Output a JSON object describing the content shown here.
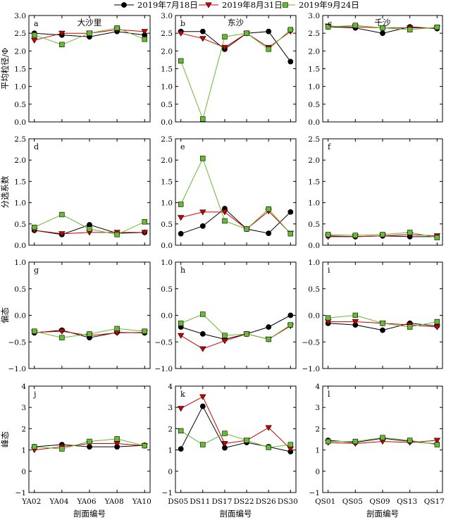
{
  "legend": [
    {
      "label": "2019年7月18日",
      "color": "#000000",
      "marker": "circle"
    },
    {
      "label": "2019年8月31日",
      "color": "#cc0000",
      "marker": "triangle-down"
    },
    {
      "label": "2019年9月24日",
      "color": "#66bb33",
      "marker": "square"
    }
  ],
  "regions": [
    "大沙里",
    "东沙",
    "千沙"
  ],
  "xlabel": "剖面编号",
  "chart_data": [
    {
      "type": "line",
      "letter": "a",
      "region": "大沙里",
      "ylabel": "平均粒径/Φ",
      "ylim": [
        0,
        3
      ],
      "yticks": [
        "0.0",
        "0.5",
        "1.0",
        "1.5",
        "2.0",
        "2.5",
        "3.0"
      ],
      "categories": [
        "YA02",
        "YA04",
        "YA06",
        "YA08",
        "YA10"
      ],
      "series": [
        {
          "name": "2019年7月18日",
          "values": [
            2.5,
            2.45,
            2.4,
            2.55,
            2.45
          ]
        },
        {
          "name": "2019年8月31日",
          "values": [
            2.3,
            2.5,
            2.5,
            2.6,
            2.55
          ]
        },
        {
          "name": "2019年9月24日",
          "values": [
            2.45,
            2.18,
            2.5,
            2.65,
            2.33
          ]
        }
      ]
    },
    {
      "type": "line",
      "letter": "b",
      "region": "东沙",
      "ylabel": "",
      "ylim": [
        0,
        3
      ],
      "yticks": [
        "0.0",
        "0.5",
        "1.0",
        "1.5",
        "2.0",
        "2.5",
        "3.0"
      ],
      "categories": [
        "DS05",
        "DS11",
        "DS17",
        "DS22",
        "DS26",
        "DS30"
      ],
      "series": [
        {
          "name": "2019年7月18日",
          "values": [
            2.55,
            2.55,
            2.05,
            2.5,
            2.55,
            1.7
          ]
        },
        {
          "name": "2019年8月31日",
          "values": [
            2.5,
            2.35,
            2.1,
            2.5,
            2.1,
            2.55
          ]
        },
        {
          "name": "2019年9月24日",
          "values": [
            1.72,
            0.08,
            2.4,
            2.5,
            2.05,
            2.6
          ]
        }
      ]
    },
    {
      "type": "line",
      "letter": "c",
      "region": "千沙",
      "ylabel": "",
      "ylim": [
        0,
        3
      ],
      "yticks": [
        "0.0",
        "0.5",
        "1.0",
        "1.5",
        "2.0",
        "2.5",
        "3.0"
      ],
      "categories": [
        "QS01",
        "QS05",
        "QS09",
        "QS13",
        "QS17"
      ],
      "series": [
        {
          "name": "2019年7月18日",
          "values": [
            2.68,
            2.65,
            2.5,
            2.68,
            2.63
          ]
        },
        {
          "name": "2019年8月31日",
          "values": [
            2.7,
            2.68,
            2.65,
            2.65,
            2.65
          ]
        },
        {
          "name": "2019年9月24日",
          "values": [
            2.68,
            2.72,
            2.65,
            2.6,
            2.67
          ]
        }
      ]
    },
    {
      "type": "line",
      "letter": "d",
      "ylabel": "分选系数",
      "ylim": [
        0,
        2.5
      ],
      "yticks": [
        "0.0",
        "0.5",
        "1.0",
        "1.5",
        "2.0",
        "2.5"
      ],
      "categories": [
        "YA02",
        "YA04",
        "YA06",
        "YA08",
        "YA10"
      ],
      "series": [
        {
          "name": "2019年7月18日",
          "values": [
            0.35,
            0.25,
            0.48,
            0.28,
            0.3
          ]
        },
        {
          "name": "2019年8月31日",
          "values": [
            0.35,
            0.27,
            0.3,
            0.3,
            0.3
          ]
        },
        {
          "name": "2019年9月24日",
          "values": [
            0.42,
            0.72,
            0.38,
            0.25,
            0.55
          ]
        }
      ]
    },
    {
      "type": "line",
      "letter": "e",
      "ylabel": "",
      "ylim": [
        0,
        2.5
      ],
      "yticks": [
        "0.0",
        "0.5",
        "1.0",
        "1.5",
        "2.0",
        "2.5"
      ],
      "categories": [
        "DS05",
        "DS11",
        "DS17",
        "DS22",
        "DS26",
        "DS30"
      ],
      "series": [
        {
          "name": "2019年7月18日",
          "values": [
            0.27,
            0.45,
            0.86,
            0.38,
            0.28,
            0.78
          ]
        },
        {
          "name": "2019年8月31日",
          "values": [
            0.65,
            0.78,
            0.78,
            0.38,
            0.8,
            0.28
          ]
        },
        {
          "name": "2019年9月24日",
          "values": [
            0.96,
            2.04,
            0.57,
            0.38,
            0.85,
            0.27
          ]
        }
      ]
    },
    {
      "type": "line",
      "letter": "f",
      "ylabel": "",
      "ylim": [
        0,
        2.5
      ],
      "yticks": [
        "0.0",
        "0.5",
        "1.0",
        "1.5",
        "2.0",
        "2.5"
      ],
      "categories": [
        "QS01",
        "QS05",
        "QS09",
        "QS13",
        "QS17"
      ],
      "series": [
        {
          "name": "2019年7月18日",
          "values": [
            0.22,
            0.2,
            0.22,
            0.2,
            0.2
          ]
        },
        {
          "name": "2019年8月31日",
          "values": [
            0.2,
            0.2,
            0.22,
            0.25,
            0.22
          ]
        },
        {
          "name": "2019年9月24日",
          "values": [
            0.25,
            0.23,
            0.25,
            0.3,
            0.18
          ]
        }
      ]
    },
    {
      "type": "line",
      "letter": "g",
      "ylabel": "偏态",
      "ylim": [
        -1,
        1
      ],
      "yticks": [
        "−1.0",
        "−0.5",
        "0.0",
        "0.5",
        "1.0"
      ],
      "categories": [
        "YA02",
        "YA04",
        "YA06",
        "YA08",
        "YA10"
      ],
      "series": [
        {
          "name": "2019年7月18日",
          "values": [
            -0.33,
            -0.28,
            -0.42,
            -0.32,
            -0.33
          ]
        },
        {
          "name": "2019年8月31日",
          "values": [
            -0.32,
            -0.3,
            -0.38,
            -0.33,
            -0.32
          ]
        },
        {
          "name": "2019年9月24日",
          "values": [
            -0.3,
            -0.42,
            -0.35,
            -0.25,
            -0.3
          ]
        }
      ]
    },
    {
      "type": "line",
      "letter": "h",
      "ylabel": "",
      "ylim": [
        -1,
        1
      ],
      "yticks": [
        "−1.0",
        "−0.5",
        "0.0",
        "0.5",
        "1.0"
      ],
      "categories": [
        "DS05",
        "DS11",
        "DS17",
        "DS22",
        "DS26",
        "DS30"
      ],
      "series": [
        {
          "name": "2019年7月18日",
          "values": [
            -0.22,
            -0.35,
            -0.45,
            -0.35,
            -0.22,
            0.0
          ]
        },
        {
          "name": "2019年8月31日",
          "values": [
            -0.38,
            -0.63,
            -0.48,
            -0.35,
            -0.45,
            -0.2
          ]
        },
        {
          "name": "2019年9月24日",
          "values": [
            -0.15,
            0.02,
            -0.38,
            -0.35,
            -0.45,
            -0.18
          ]
        }
      ]
    },
    {
      "type": "line",
      "letter": "i",
      "ylabel": "",
      "ylim": [
        -1,
        1
      ],
      "yticks": [
        "−1.0",
        "−0.5",
        "0.0",
        "0.5",
        "1.0"
      ],
      "categories": [
        "QS01",
        "QS05",
        "QS09",
        "QS13",
        "QS17"
      ],
      "series": [
        {
          "name": "2019年7月18日",
          "values": [
            -0.15,
            -0.18,
            -0.28,
            -0.15,
            -0.2
          ]
        },
        {
          "name": "2019年8月31日",
          "values": [
            -0.12,
            -0.12,
            -0.15,
            -0.18,
            -0.22
          ]
        },
        {
          "name": "2019年9月24日",
          "values": [
            -0.05,
            0.0,
            -0.15,
            -0.22,
            -0.12
          ]
        }
      ]
    },
    {
      "type": "line",
      "letter": "j",
      "ylabel": "峰态",
      "ylim": [
        -1,
        4
      ],
      "yticks": [
        "−1",
        "0",
        "1",
        "2",
        "3",
        "4"
      ],
      "categories": [
        "YA02",
        "YA04",
        "YA06",
        "YA08",
        "YA10"
      ],
      "series": [
        {
          "name": "2019年7月18日",
          "values": [
            1.15,
            1.25,
            1.15,
            1.15,
            1.22
          ]
        },
        {
          "name": "2019年8月31日",
          "values": [
            1.0,
            1.15,
            1.3,
            1.3,
            1.2
          ]
        },
        {
          "name": "2019年9月24日",
          "values": [
            1.15,
            1.05,
            1.4,
            1.52,
            1.2
          ]
        }
      ]
    },
    {
      "type": "line",
      "letter": "k",
      "ylabel": "",
      "ylim": [
        -1,
        4
      ],
      "yticks": [
        "−1",
        "0",
        "1",
        "2",
        "3",
        "4"
      ],
      "categories": [
        "DS05",
        "DS11",
        "DS17",
        "DS22",
        "DS26",
        "DS30"
      ],
      "series": [
        {
          "name": "2019年7月18日",
          "values": [
            1.05,
            3.05,
            1.1,
            1.35,
            1.15,
            0.92
          ]
        },
        {
          "name": "2019年8月31日",
          "values": [
            2.95,
            3.5,
            1.3,
            1.45,
            2.05,
            1.05
          ]
        },
        {
          "name": "2019年9月24日",
          "values": [
            1.9,
            1.25,
            1.78,
            1.45,
            1.12,
            1.25
          ]
        }
      ]
    },
    {
      "type": "line",
      "letter": "l",
      "ylabel": "",
      "ylim": [
        -1,
        4
      ],
      "yticks": [
        "−1",
        "0",
        "1",
        "2",
        "3",
        "4"
      ],
      "categories": [
        "QS01",
        "QS05",
        "QS09",
        "QS13",
        "QS17"
      ],
      "series": [
        {
          "name": "2019年7月18日",
          "values": [
            1.45,
            1.35,
            1.55,
            1.4,
            1.28
          ]
        },
        {
          "name": "2019年8月31日",
          "values": [
            1.35,
            1.3,
            1.4,
            1.35,
            1.45
          ]
        },
        {
          "name": "2019年9月24日",
          "values": [
            1.4,
            1.4,
            1.58,
            1.45,
            1.25
          ]
        }
      ]
    }
  ]
}
